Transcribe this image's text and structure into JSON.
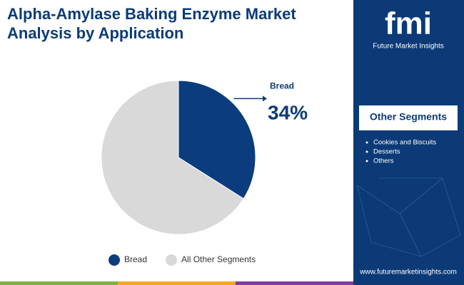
{
  "chart_data": {
    "type": "pie",
    "title": "Alpha-Amylase Baking Enzyme Market Analysis by Application",
    "categories": [
      "Bread",
      "All Other Segments"
    ],
    "values": [
      34,
      66
    ],
    "value_labels": [
      "34%",
      null
    ],
    "colors": [
      "#0b3d7e",
      "#d9d9d9"
    ],
    "legend": "bottom"
  },
  "brand": {
    "logo": "fmi",
    "name": "Future Market Insights"
  },
  "sidebar": {
    "title": "Other Segments",
    "items": [
      "Cookies and Biscuits",
      "Desserts",
      "Others"
    ]
  },
  "website": "www.futuremarketinsights.com"
}
